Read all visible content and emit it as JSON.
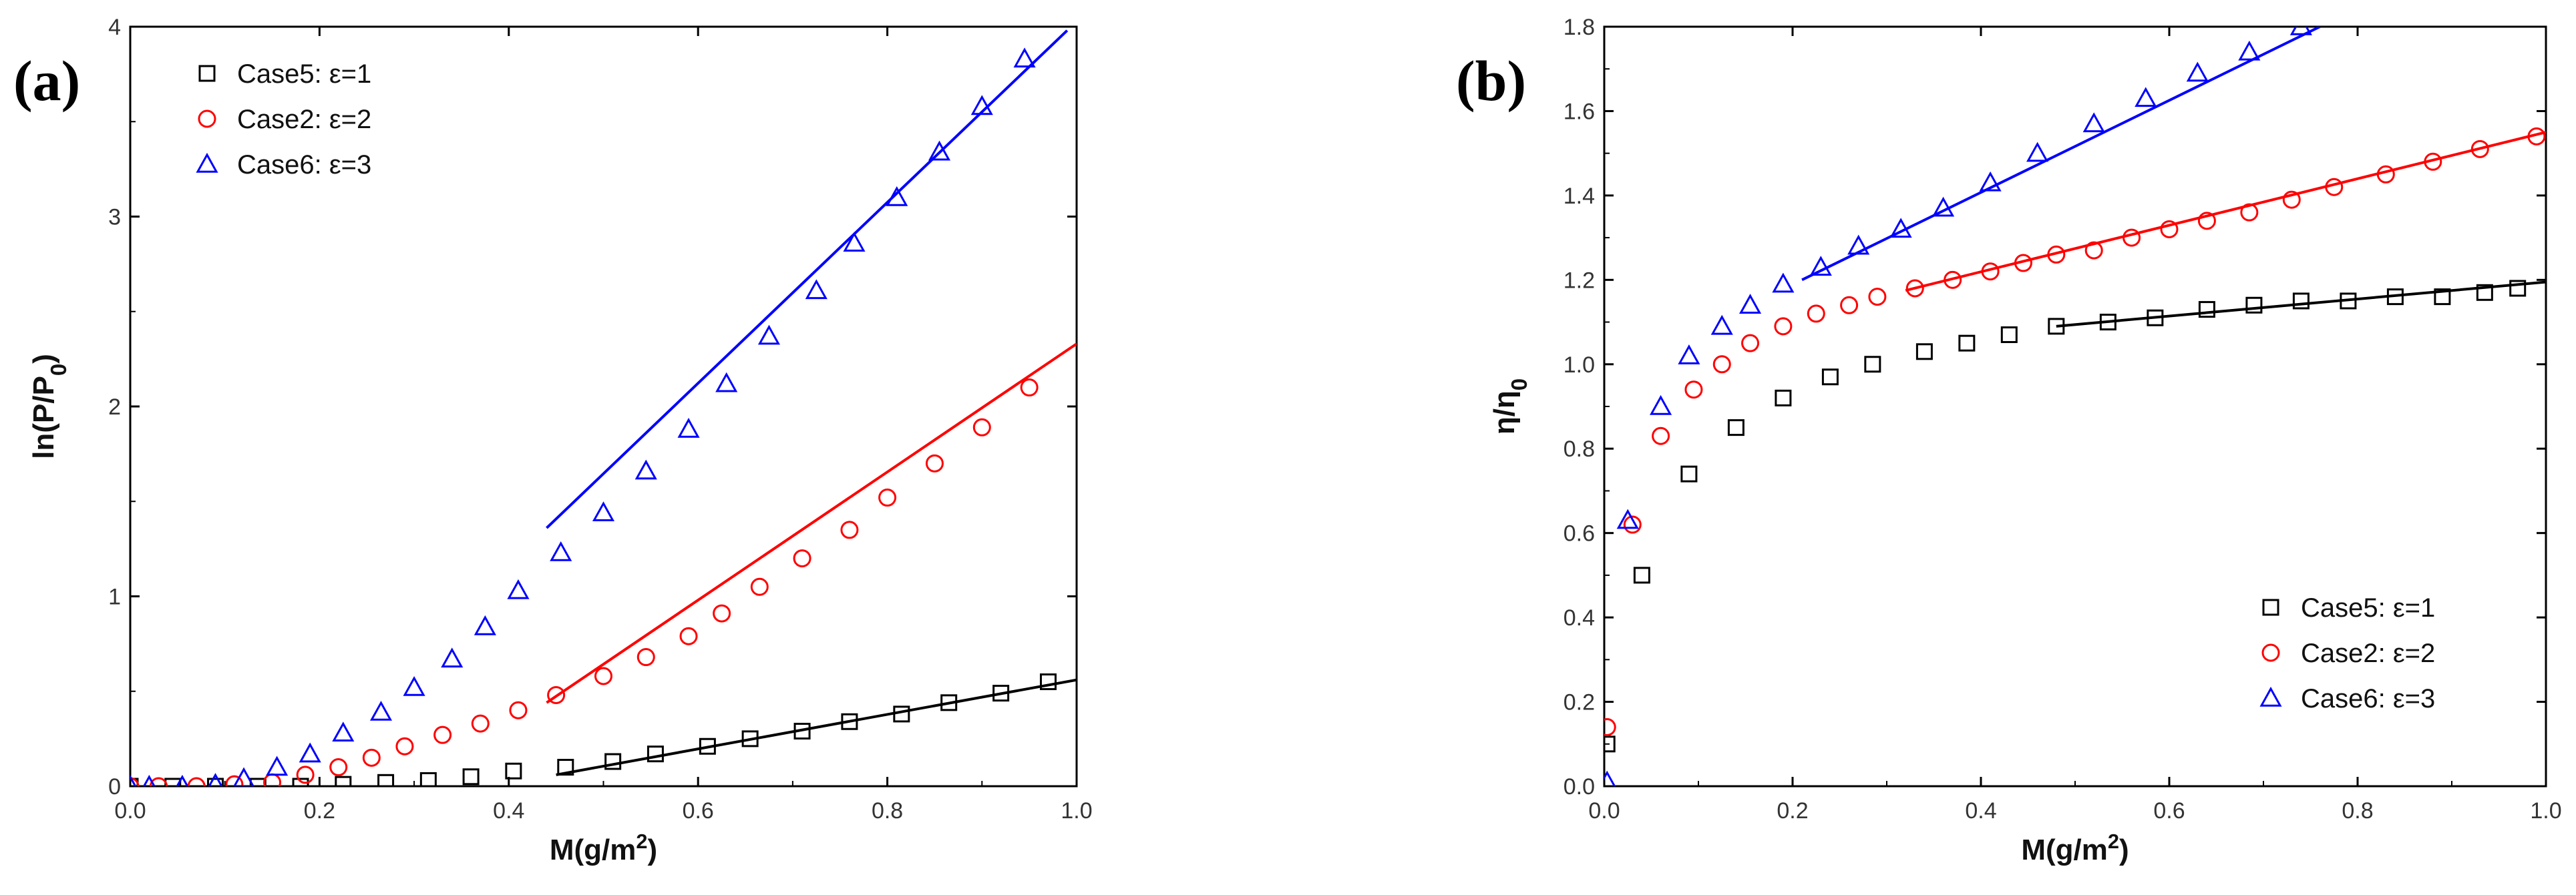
{
  "chart_data": [
    {
      "type": "scatter",
      "panel_label": "(a)",
      "xlabel": "M(g/m²)",
      "ylabel": "ln(P/P₀)",
      "xlim": [
        0.0,
        1.0
      ],
      "ylim": [
        0,
        4
      ],
      "xticks": [
        "0.0",
        "0.2",
        "0.4",
        "0.6",
        "0.8",
        "1.0"
      ],
      "xtick_values": [
        0.0,
        0.2,
        0.4,
        0.6,
        0.8,
        1.0
      ],
      "yticks": [
        "0",
        "1",
        "2",
        "3",
        "4"
      ],
      "ytick_values": [
        0,
        1,
        2,
        3,
        4
      ],
      "legend_position": "top-left",
      "series": [
        {
          "name": "Case5: ε=1",
          "marker": "square",
          "color": "#000000",
          "x": [
            0.0,
            0.045,
            0.09,
            0.135,
            0.18,
            0.225,
            0.27,
            0.315,
            0.36,
            0.405,
            0.46,
            0.51,
            0.555,
            0.61,
            0.655,
            0.71,
            0.76,
            0.815,
            0.865,
            0.92,
            0.97
          ],
          "y": [
            0.0,
            0.0,
            0.0,
            0.0,
            0.0,
            0.01,
            0.02,
            0.03,
            0.05,
            0.08,
            0.1,
            0.13,
            0.17,
            0.21,
            0.25,
            0.29,
            0.34,
            0.38,
            0.44,
            0.49,
            0.55
          ],
          "fit": [
            [
              0.45,
              0.06
            ],
            [
              1.0,
              0.56
            ]
          ]
        },
        {
          "name": "Case2: ε=2",
          "marker": "circle",
          "color": "#ff0000",
          "x": [
            0.0,
            0.03,
            0.07,
            0.11,
            0.15,
            0.185,
            0.22,
            0.255,
            0.29,
            0.33,
            0.37,
            0.41,
            0.45,
            0.5,
            0.545,
            0.59,
            0.625,
            0.665,
            0.71,
            0.76,
            0.8,
            0.85,
            0.9,
            0.95
          ],
          "y": [
            0.0,
            0.0,
            0.0,
            0.01,
            0.02,
            0.06,
            0.1,
            0.15,
            0.21,
            0.27,
            0.33,
            0.4,
            0.48,
            0.58,
            0.68,
            0.79,
            0.91,
            1.05,
            1.2,
            1.35,
            1.52,
            1.7,
            1.89,
            2.1
          ],
          "fit": [
            [
              0.44,
              0.44
            ],
            [
              1.0,
              2.33
            ]
          ]
        },
        {
          "name": "Case6: ε=3",
          "marker": "triangle",
          "color": "#0000ff",
          "x": [
            0.0,
            0.02,
            0.055,
            0.09,
            0.12,
            0.155,
            0.19,
            0.225,
            0.265,
            0.3,
            0.34,
            0.375,
            0.41,
            0.455,
            0.5,
            0.545,
            0.59,
            0.63,
            0.675,
            0.725,
            0.765,
            0.81,
            0.855,
            0.9,
            0.945
          ],
          "y": [
            0.0,
            0.0,
            0.0,
            0.01,
            0.04,
            0.1,
            0.17,
            0.28,
            0.39,
            0.52,
            0.67,
            0.84,
            1.03,
            1.23,
            1.44,
            1.66,
            1.88,
            2.12,
            2.37,
            2.61,
            2.86,
            3.1,
            3.34,
            3.58,
            3.83
          ],
          "fit": [
            [
              0.44,
              1.36
            ],
            [
              0.99,
              3.98
            ]
          ]
        }
      ]
    },
    {
      "type": "scatter",
      "panel_label": "(b)",
      "xlabel": "M(g/m²)",
      "ylabel": "η/η₀",
      "xlim": [
        0.0,
        1.0
      ],
      "ylim": [
        0.0,
        1.8
      ],
      "xticks": [
        "0.0",
        "0.2",
        "0.4",
        "0.6",
        "0.8",
        "1.0"
      ],
      "xtick_values": [
        0.0,
        0.2,
        0.4,
        0.6,
        0.8,
        1.0
      ],
      "yticks": [
        "0.0",
        "0.2",
        "0.4",
        "0.6",
        "0.8",
        "1.0",
        "1.2",
        "1.4",
        "1.6",
        "1.8"
      ],
      "ytick_values": [
        0.0,
        0.2,
        0.4,
        0.6,
        0.8,
        1.0,
        1.2,
        1.4,
        1.6,
        1.8
      ],
      "legend_position": "bottom-right",
      "series": [
        {
          "name": "Case5: ε=1",
          "marker": "square",
          "color": "#000000",
          "x": [
            0.003,
            0.04,
            0.09,
            0.14,
            0.19,
            0.24,
            0.285,
            0.34,
            0.385,
            0.43,
            0.48,
            0.535,
            0.585,
            0.64,
            0.69,
            0.74,
            0.79,
            0.84,
            0.89,
            0.935,
            0.97
          ],
          "y": [
            0.1,
            0.5,
            0.74,
            0.85,
            0.92,
            0.97,
            1.0,
            1.03,
            1.05,
            1.07,
            1.09,
            1.1,
            1.11,
            1.13,
            1.14,
            1.15,
            1.15,
            1.16,
            1.16,
            1.17,
            1.18
          ],
          "fit": [
            [
              0.48,
              1.09
            ],
            [
              1.0,
              1.195
            ]
          ]
        },
        {
          "name": "Case2: ε=2",
          "marker": "circle",
          "color": "#ff0000",
          "x": [
            0.003,
            0.03,
            0.06,
            0.095,
            0.125,
            0.155,
            0.19,
            0.225,
            0.26,
            0.29,
            0.33,
            0.37,
            0.41,
            0.445,
            0.48,
            0.52,
            0.56,
            0.6,
            0.64,
            0.685,
            0.73,
            0.775,
            0.83,
            0.88,
            0.93,
            0.99
          ],
          "y": [
            0.14,
            0.62,
            0.83,
            0.94,
            1.0,
            1.05,
            1.09,
            1.12,
            1.14,
            1.16,
            1.18,
            1.2,
            1.22,
            1.24,
            1.26,
            1.27,
            1.3,
            1.32,
            1.34,
            1.36,
            1.39,
            1.42,
            1.45,
            1.48,
            1.51,
            1.54
          ],
          "fit": [
            [
              0.32,
              1.175
            ],
            [
              1.0,
              1.55
            ]
          ]
        },
        {
          "name": "Case6: ε=3",
          "marker": "triangle",
          "color": "#0000ff",
          "x": [
            0.003,
            0.025,
            0.06,
            0.09,
            0.125,
            0.155,
            0.19,
            0.23,
            0.27,
            0.315,
            0.36,
            0.41,
            0.46,
            0.52,
            0.575,
            0.63,
            0.685,
            0.74
          ],
          "y": [
            0.01,
            0.63,
            0.9,
            1.02,
            1.09,
            1.14,
            1.19,
            1.23,
            1.28,
            1.32,
            1.37,
            1.43,
            1.5,
            1.57,
            1.63,
            1.69,
            1.74,
            1.8
          ],
          "fit": [
            [
              0.21,
              1.2
            ],
            [
              0.76,
              1.8
            ]
          ]
        }
      ]
    }
  ]
}
